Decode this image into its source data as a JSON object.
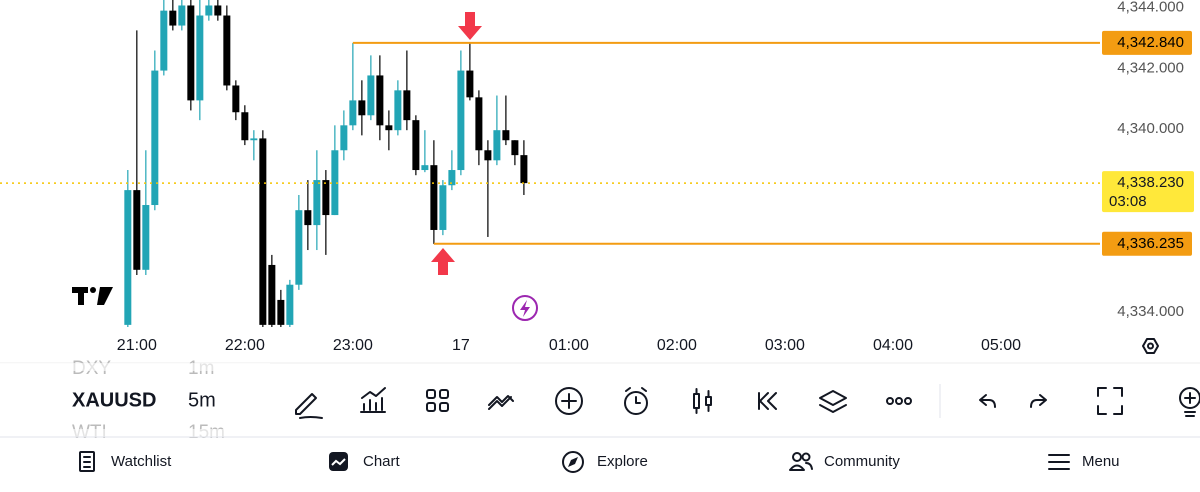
{
  "chart_data": {
    "type": "candlestick",
    "x": [
      1255,
      1260,
      1265,
      1270,
      1275,
      1280,
      1285,
      1290,
      1295,
      1300,
      1305,
      1310,
      1315,
      1320,
      1325,
      1330,
      1335,
      1340,
      1345,
      1350,
      1355,
      1360,
      1365,
      1370,
      1375,
      1380,
      1385,
      1390,
      1395,
      1400,
      1405,
      1410,
      1415,
      1420,
      1425,
      1430,
      1435,
      1440,
      1445,
      1450,
      1455,
      1460,
      1465,
      1470,
      1475
    ],
    "open": [
      4333.57,
      4338.0,
      4335.38,
      4337.51,
      4341.93,
      4343.9,
      4343.41,
      4344.07,
      4340.95,
      4343.74,
      4344.07,
      4343.74,
      4341.44,
      4340.56,
      4339.64,
      4339.7,
      4335.54,
      4334.39,
      4333.57,
      4334.89,
      4337.34,
      4336.85,
      4338.33,
      4337.18,
      4339.31,
      4340.13,
      4340.95,
      4340.46,
      4341.77,
      4340.13,
      4339.97,
      4341.28,
      4340.3,
      4338.66,
      4338.82,
      4336.69,
      4338.16,
      4338.66,
      4341.93,
      4341.05,
      4339.31,
      4338.98,
      4339.97,
      4339.64,
      4339.15
    ],
    "high": [
      4338.66,
      4343.25,
      4339.31,
      4342.59,
      4344.39,
      4344.39,
      4344.39,
      4344.39,
      4344.39,
      4344.39,
      4344.39,
      4344.07,
      4341.61,
      4340.79,
      4339.97,
      4339.97,
      4335.87,
      4334.72,
      4335.05,
      4337.84,
      4338.33,
      4339.31,
      4338.66,
      4340.13,
      4340.62,
      4342.84,
      4341.61,
      4342.43,
      4342.43,
      4340.62,
      4341.61,
      4342.59,
      4340.46,
      4339.97,
      4339.64,
      4338.33,
      4339.31,
      4342.59,
      4342.84,
      4341.28,
      4339.64,
      4341.11,
      4341.11,
      4339.64,
      4339.64
    ],
    "low": [
      4333.41,
      4335.21,
      4335.21,
      4337.34,
      4341.77,
      4343.25,
      4343.25,
      4340.62,
      4340.3,
      4343.57,
      4343.57,
      4341.28,
      4340.3,
      4339.48,
      4338.98,
      4333.41,
      4333.41,
      4333.41,
      4333.41,
      4334.72,
      4336.03,
      4336.03,
      4335.87,
      4337.18,
      4338.98,
      4339.97,
      4339.8,
      4340.3,
      4339.64,
      4339.31,
      4339.8,
      4339.97,
      4338.49,
      4338.59,
      4336.23,
      4336.52,
      4338.0,
      4338.49,
      4340.95,
      4338.82,
      4336.46,
      4338.82,
      4339.48,
      4338.82,
      4337.84
    ],
    "close": [
      4338.0,
      4335.38,
      4337.51,
      4341.93,
      4343.9,
      4343.41,
      4344.07,
      4340.95,
      4343.74,
      4344.07,
      4343.74,
      4341.44,
      4340.56,
      4339.64,
      4339.7,
      4333.57,
      4333.57,
      4333.57,
      4334.89,
      4337.34,
      4336.85,
      4338.33,
      4337.18,
      4339.31,
      4340.13,
      4340.95,
      4340.46,
      4341.77,
      4340.13,
      4339.97,
      4341.28,
      4340.3,
      4338.66,
      4338.82,
      4336.69,
      4338.16,
      4338.66,
      4341.93,
      4341.05,
      4339.31,
      4338.98,
      4339.97,
      4339.64,
      4339.15,
      4338.23
    ],
    "up_color": "#22a5b5",
    "down_color": "#000000",
    "xlim": [
      1184,
      1795
    ],
    "xticks": [
      {
        "value": 1260,
        "label": "21:00"
      },
      {
        "value": 1320,
        "label": "22:00"
      },
      {
        "value": 1380,
        "label": "23:00"
      },
      {
        "value": 1440,
        "label": "17"
      },
      {
        "value": 1500,
        "label": "01:00"
      },
      {
        "value": 1560,
        "label": "02:00"
      },
      {
        "value": 1620,
        "label": "03:00"
      },
      {
        "value": 1680,
        "label": "04:00"
      },
      {
        "value": 1740,
        "label": "05:00"
      }
    ],
    "ylim": [
      4333.5,
      4344.25
    ],
    "yticks": [
      {
        "value": 4344,
        "label": "4,344.000"
      },
      {
        "value": 4342,
        "label": "4,342.000"
      },
      {
        "value": 4340,
        "label": "4,340.000"
      },
      {
        "value": 4334,
        "label": "4,334.000"
      }
    ],
    "levels": [
      {
        "value": 4342.84,
        "label": "4,342.840",
        "color": "#f39c12"
      },
      {
        "value": 4336.235,
        "label": "4,336.235",
        "color": "#f39c12"
      }
    ],
    "last_price": {
      "value": 4338.23,
      "label": "4,338.230",
      "countdown": "03:08",
      "color": "#ffe83a"
    }
  },
  "toolbar": {
    "prev_symbol": "DXY",
    "symbol": "XAUUSD",
    "next_symbol": "WTI",
    "prev_interval": "1m",
    "interval": "5m",
    "next_interval": "15m"
  },
  "nav": [
    {
      "label": "Watchlist"
    },
    {
      "label": "Chart"
    },
    {
      "label": "Explore"
    },
    {
      "label": "Community"
    },
    {
      "label": "Menu"
    }
  ]
}
